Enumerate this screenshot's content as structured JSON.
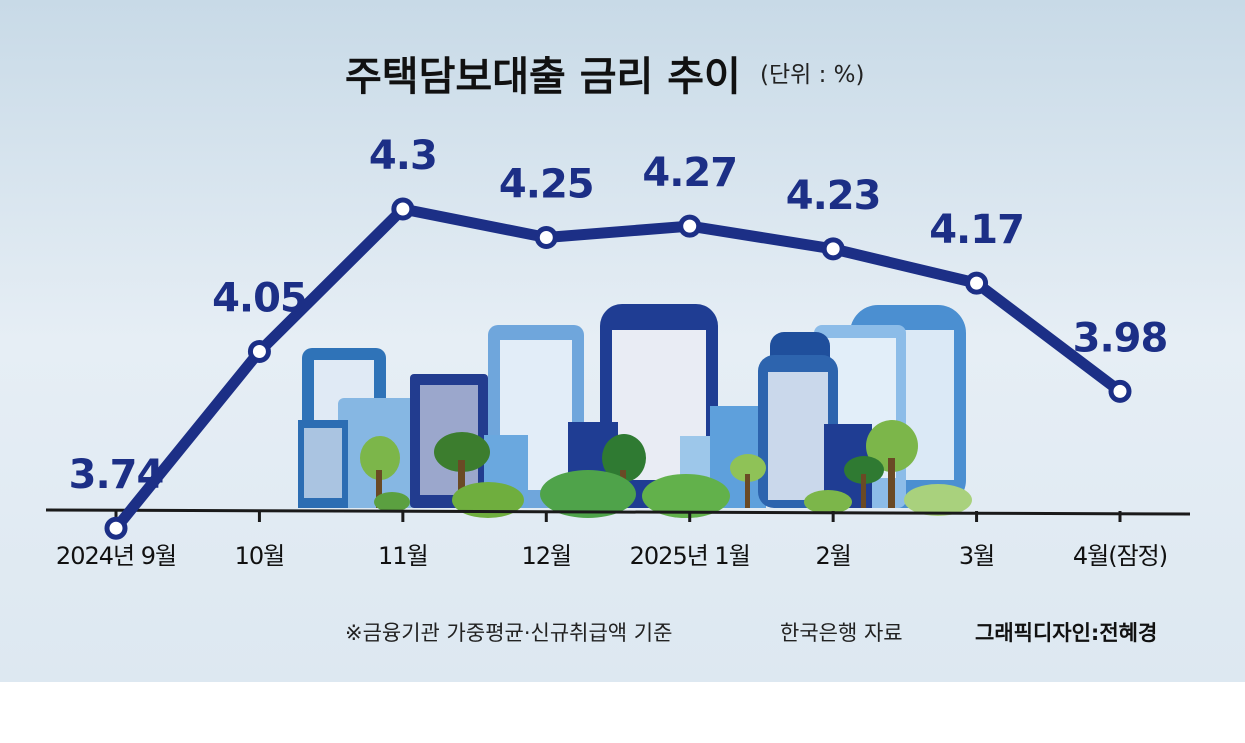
{
  "chart_data": {
    "type": "line",
    "title": "주택담보대출 금리 추이",
    "unit": "(단위 : %)",
    "categories": [
      "2024년 9월",
      "10월",
      "11월",
      "12월",
      "2025년 1월",
      "2월",
      "3월",
      "4월(잠정)"
    ],
    "values": [
      3.74,
      4.05,
      4.3,
      4.25,
      4.27,
      4.23,
      4.17,
      3.98
    ],
    "value_labels": [
      "3.74",
      "4.05",
      "4.3",
      "4.25",
      "4.27",
      "4.23",
      "4.17",
      "3.98"
    ],
    "ylim": [
      3.5,
      4.5
    ],
    "grid": false,
    "legend": "none",
    "line_color": "#1c2f86"
  },
  "footer": {
    "note": "※금융기관 가중평균·신규취급액 기준",
    "source": "한국은행 자료",
    "credit": "그래픽디자인:전혜경"
  },
  "colors": {
    "line": "#1c2f86",
    "background_top": "#c9dbe8",
    "background_bottom": "#e9f0f6"
  }
}
